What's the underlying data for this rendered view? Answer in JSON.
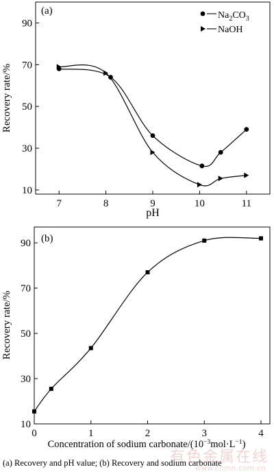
{
  "chart_data": [
    {
      "type": "line",
      "panel_label": "(a)",
      "xlabel": "pH",
      "ylabel": "Recovery rate/%",
      "xlim": [
        6.5,
        11.5
      ],
      "ylim": [
        8,
        100
      ],
      "xticks": [
        7,
        8,
        9,
        10,
        11
      ],
      "yticks": [
        10,
        30,
        50,
        70,
        90
      ],
      "legend_position": "top-right",
      "series": [
        {
          "name": "Na2CO3",
          "marker": "circle",
          "x": [
            7.0,
            8.1,
            9.0,
            10.05,
            10.45,
            11.0
          ],
          "y": [
            68,
            64,
            36,
            21.5,
            28,
            39
          ]
        },
        {
          "name": "NaOH",
          "marker": "triangle-right",
          "x": [
            7.0,
            8.0,
            9.0,
            10.0,
            10.45,
            11.0
          ],
          "y": [
            69,
            66,
            28,
            12.5,
            15.5,
            17
          ]
        }
      ]
    },
    {
      "type": "line",
      "panel_label": "(b)",
      "xlabel": "Concentration of sodium carbonate/(10⁻³mol·L⁻¹)",
      "ylabel": "Recovery rate/%",
      "xlim": [
        0,
        4
      ],
      "ylim": [
        10,
        97
      ],
      "xticks": [
        0,
        1,
        2,
        3,
        4
      ],
      "yticks": [
        10,
        30,
        50,
        70,
        90
      ],
      "series": [
        {
          "name": "",
          "marker": "square",
          "x": [
            0,
            0.3,
            1.0,
            2.0,
            3.0,
            4.0
          ],
          "y": [
            15.5,
            25.5,
            43.5,
            77,
            91,
            92
          ]
        }
      ]
    }
  ],
  "legend": {
    "na2co3_main": "Na",
    "na2co3_sub1": "2",
    "na2co3_mid": "CO",
    "na2co3_sub2": "3",
    "naoh": "NaOH"
  },
  "caption": "(a) Recovery and pH value; (b) Recovery and sodium carbonate",
  "watermark": "有色金属在线",
  "watermark_url": "www.cnmn.com.cn"
}
